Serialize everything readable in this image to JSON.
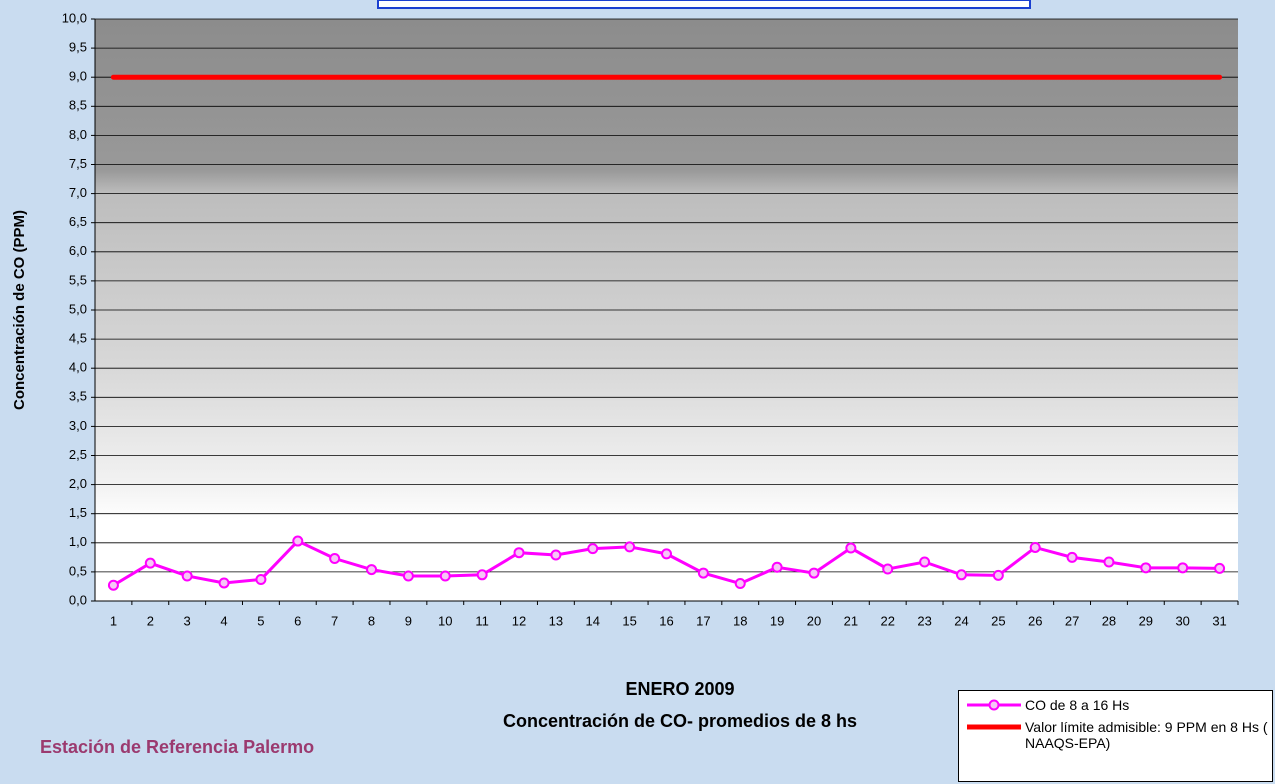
{
  "chart_data": {
    "type": "line",
    "y_label": "Concentración de CO (PPM)",
    "title": "ENERO 2009",
    "subtitle": "Concentración de CO- promedios de 8 hs",
    "station": "Estación de Referencia Palermo",
    "categories": [
      "1",
      "2",
      "3",
      "4",
      "5",
      "6",
      "7",
      "8",
      "9",
      "10",
      "11",
      "12",
      "13",
      "14",
      "15",
      "16",
      "17",
      "18",
      "19",
      "20",
      "21",
      "22",
      "23",
      "24",
      "25",
      "26",
      "27",
      "28",
      "29",
      "30",
      "31"
    ],
    "series": [
      {
        "name": "CO de 8 a 16 Hs",
        "color": "#ff00ff",
        "markers": true,
        "values": [
          0.27,
          0.65,
          0.43,
          0.31,
          0.37,
          1.03,
          0.73,
          0.54,
          0.43,
          0.43,
          0.45,
          0.83,
          0.79,
          0.9,
          0.93,
          0.81,
          0.48,
          0.3,
          0.58,
          0.48,
          0.91,
          0.55,
          0.67,
          0.45,
          0.44,
          0.92,
          0.75,
          0.67,
          0.57,
          0.57,
          0.56
        ]
      },
      {
        "name": "Valor límite admisible: 9 PPM en 8 Hs ( NAAQS-EPA)",
        "color": "#ff0000",
        "markers": false,
        "values": [
          9,
          9,
          9,
          9,
          9,
          9,
          9,
          9,
          9,
          9,
          9,
          9,
          9,
          9,
          9,
          9,
          9,
          9,
          9,
          9,
          9,
          9,
          9,
          9,
          9,
          9,
          9,
          9,
          9,
          9,
          9
        ]
      }
    ],
    "ylim": [
      0,
      10
    ],
    "yticks": [
      {
        "value": 0,
        "label": "0,0"
      },
      {
        "value": 0.5,
        "label": "0,5"
      },
      {
        "value": 1,
        "label": "1,0"
      },
      {
        "value": 1.5,
        "label": "1,5"
      },
      {
        "value": 2,
        "label": "2,0"
      },
      {
        "value": 2.5,
        "label": "2,5"
      },
      {
        "value": 3,
        "label": "3,0"
      },
      {
        "value": 3.5,
        "label": "3,5"
      },
      {
        "value": 4,
        "label": "4,0"
      },
      {
        "value": 4.5,
        "label": "4,5"
      },
      {
        "value": 5,
        "label": "5,0"
      },
      {
        "value": 5.5,
        "label": "5,5"
      },
      {
        "value": 6,
        "label": "6,0"
      },
      {
        "value": 6.5,
        "label": "6,5"
      },
      {
        "value": 7,
        "label": "7,0"
      },
      {
        "value": 7.5,
        "label": "7,5"
      },
      {
        "value": 8,
        "label": "8,0"
      },
      {
        "value": 8.5,
        "label": "8,5"
      },
      {
        "value": 9,
        "label": "9,0"
      },
      {
        "value": 9.5,
        "label": "9,5"
      },
      {
        "value": 10,
        "label": "10,0"
      }
    ],
    "grid": true
  }
}
